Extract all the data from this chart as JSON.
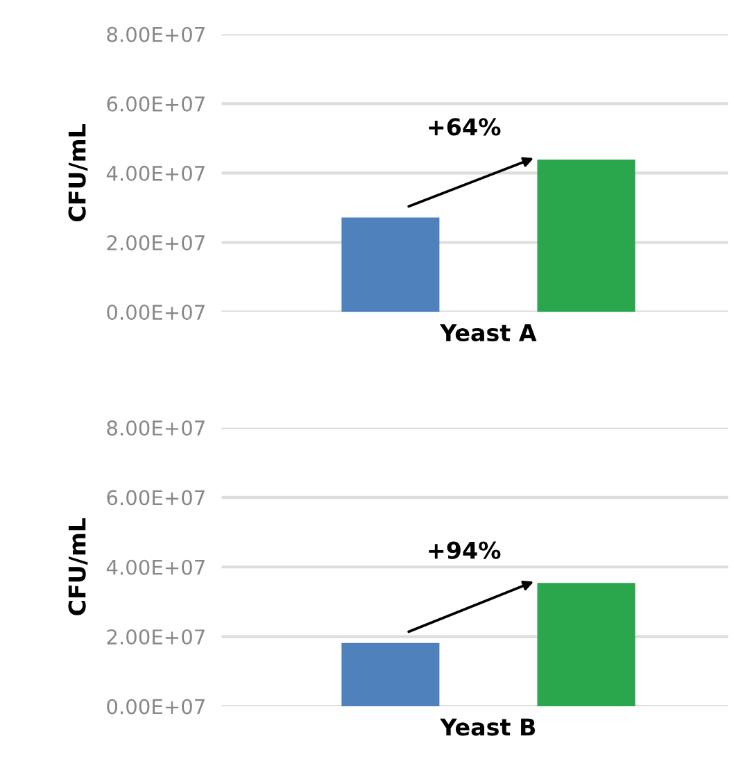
{
  "chart_data": [
    {
      "type": "bar",
      "categories": [
        "Yeast A"
      ],
      "ylabel": "CFU/mL",
      "series": [
        {
          "color": "#4f81bd",
          "values": [
            27200000
          ]
        },
        {
          "color": "#2aa64c",
          "values": [
            43900000
          ]
        }
      ],
      "ylim": [
        0,
        80000000
      ],
      "yticks": [
        {
          "value": 0,
          "label": "0.00E+07"
        },
        {
          "value": 20000000,
          "label": "2.00E+07"
        },
        {
          "value": 40000000,
          "label": "4.00E+07"
        },
        {
          "value": 60000000,
          "label": "6.00E+07"
        },
        {
          "value": 80000000,
          "label": "8.00E+07"
        }
      ],
      "grid": "y",
      "annotations": [
        "+64%"
      ]
    },
    {
      "type": "bar",
      "categories": [
        "Yeast B"
      ],
      "ylabel": "CFU/mL",
      "series": [
        {
          "color": "#4f81bd",
          "values": [
            18200000
          ]
        },
        {
          "color": "#2aa64c",
          "values": [
            35400000
          ]
        }
      ],
      "ylim": [
        0,
        80000000
      ],
      "yticks": [
        {
          "value": 0,
          "label": "0.00E+07"
        },
        {
          "value": 20000000,
          "label": "2.00E+07"
        },
        {
          "value": 40000000,
          "label": "4.00E+07"
        },
        {
          "value": 60000000,
          "label": "6.00E+07"
        },
        {
          "value": 80000000,
          "label": "8.00E+07"
        }
      ],
      "grid": "y",
      "annotations": [
        "+94%"
      ]
    }
  ]
}
